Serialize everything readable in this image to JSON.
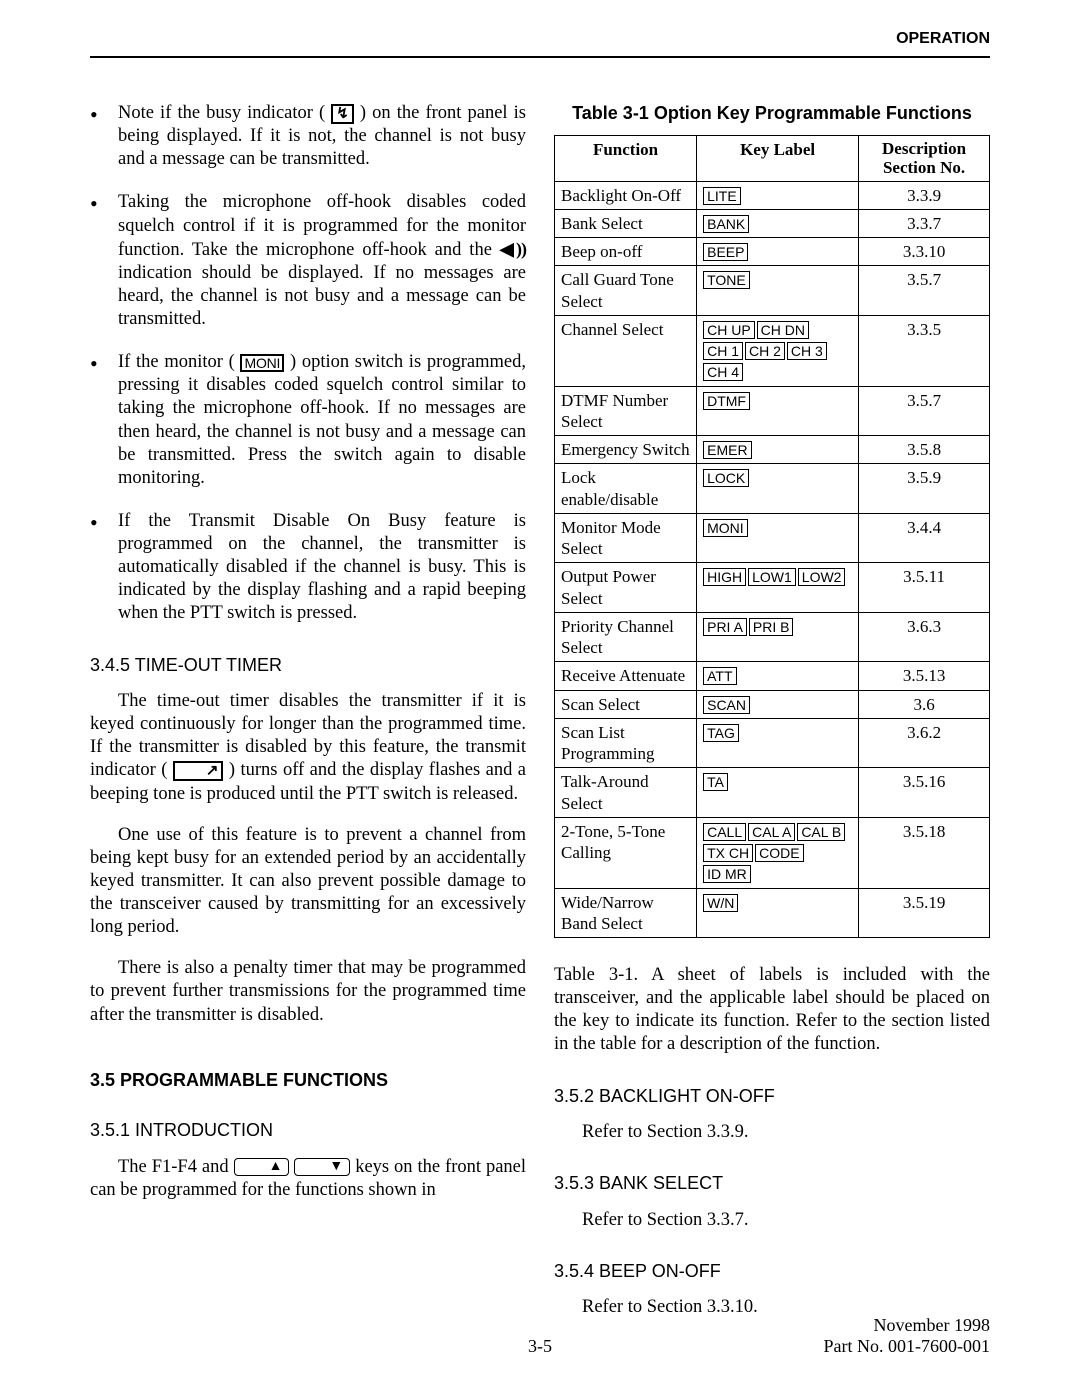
{
  "header": {
    "section_title": "OPERATION"
  },
  "bullets": [
    {
      "parts": [
        {
          "text": "Note if the busy indicator ( "
        },
        {
          "icon_square": "↯"
        },
        {
          "text": " ) on the front panel is being displayed. If it is not, the channel is not busy and a message can be transmitted."
        }
      ]
    },
    {
      "parts": [
        {
          "text": "Taking the microphone off-hook disables coded squelch control if it is programmed for the monitor function. Take the microphone off-hook and the "
        },
        {
          "sound_icon": "◀🔊"
        },
        {
          "text": " indication should be displayed. If no messages are heard, the channel is not busy and a message can be transmitted."
        }
      ]
    },
    {
      "parts": [
        {
          "text": "If the monitor ( "
        },
        {
          "icon_text": "MONI"
        },
        {
          "text": " ) option switch is programmed, pressing it disables coded squelch control similar to taking the microphone off-hook. If no messages are then heard, the channel is not busy and a message can be transmitted. Press the switch again to disable monitoring."
        }
      ]
    },
    {
      "parts": [
        {
          "text": "If the Transmit Disable On Busy feature is programmed on the channel, the transmitter is automatically disabled if the channel is busy. This is indicated by the display flashing and a rapid beeping when the PTT switch is pressed."
        }
      ]
    }
  ],
  "subsections_left": [
    {
      "heading": "3.4.5  TIME-OUT TIMER",
      "paras": [
        {
          "parts": [
            {
              "text": "The time-out timer disables the transmitter if it is keyed continuously for longer than the programmed time. If the transmitter is disabled by this feature, the transmit indicator ( "
            },
            {
              "icon_square": "↗"
            },
            {
              "text": " ) turns off and the display flashes and a beeping tone is produced until the PTT switch is released."
            }
          ]
        },
        {
          "parts": [
            {
              "text": "One use of this feature is to prevent a channel from being kept busy for an extended period by an accidentally keyed transmitter. It can also prevent possible damage to the transceiver caused by transmitting for an excessively long period."
            }
          ]
        },
        {
          "parts": [
            {
              "text": "There is also a penalty timer that may be programmed to prevent further transmissions for the programmed time after the transmitter is disabled."
            }
          ]
        }
      ]
    }
  ],
  "section_head": "3.5 PROGRAMMABLE FUNCTIONS",
  "intro": {
    "heading": "3.5.1  INTRODUCTION",
    "para_parts": [
      {
        "text": "The F1-F4 and "
      },
      {
        "key": "▲"
      },
      {
        "key": "▼"
      },
      {
        "text": " keys on the front panel can be programmed for the functions shown in "
      }
    ]
  },
  "table": {
    "caption": "Table 3-1  Option Key Programmable Functions",
    "columns": [
      "Function",
      "Key Label",
      "Description Section No."
    ],
    "rows": [
      {
        "func": "Backlight On-Off",
        "labels": [
          "LITE"
        ],
        "sect": "3.3.9"
      },
      {
        "func": "Bank Select",
        "labels": [
          "BANK"
        ],
        "sect": "3.3.7"
      },
      {
        "func": "Beep on-off",
        "labels": [
          "BEEP"
        ],
        "sect": "3.3.10"
      },
      {
        "func": "Call Guard Tone Select",
        "labels": [
          "TONE"
        ],
        "sect": "3.5.7"
      },
      {
        "func": "Channel Select",
        "labels": [
          "CH UP",
          "CH DN",
          "CH 1",
          "CH 2",
          "CH 3",
          "CH 4"
        ],
        "sect": "3.3.5"
      },
      {
        "func": "DTMF Number Select",
        "labels": [
          "DTMF"
        ],
        "sect": "3.5.7"
      },
      {
        "func": "Emergency Switch",
        "labels": [
          "EMER"
        ],
        "sect": "3.5.8"
      },
      {
        "func": "Lock enable/disable",
        "labels": [
          "LOCK"
        ],
        "sect": "3.5.9"
      },
      {
        "func": "Monitor Mode Select",
        "labels": [
          "MONI"
        ],
        "sect": "3.4.4"
      },
      {
        "func": "Output Power Select",
        "labels": [
          "HIGH",
          "LOW1",
          "LOW2"
        ],
        "sect": "3.5.11"
      },
      {
        "func": "Priority Channel Select",
        "labels": [
          "PRI A",
          "PRI B"
        ],
        "sect": "3.6.3"
      },
      {
        "func": "Receive Attenuate",
        "labels": [
          "ATT"
        ],
        "sect": "3.5.13"
      },
      {
        "func": "Scan Select",
        "labels": [
          "SCAN"
        ],
        "sect": "3.6"
      },
      {
        "func": "Scan List Programming",
        "labels": [
          "TAG"
        ],
        "sect": "3.6.2"
      },
      {
        "func": "Talk-Around Select",
        "labels": [
          "TA"
        ],
        "sect": "3.5.16"
      },
      {
        "func": "2-Tone, 5-Tone Calling",
        "labels": [
          "CALL",
          "CAL A",
          "CAL B",
          "TX CH",
          "CODE",
          "ID MR"
        ],
        "sect": "3.5.18"
      },
      {
        "func": "Wide/Narrow Band Select",
        "labels": [
          "W/N"
        ],
        "sect": "3.5.19"
      }
    ]
  },
  "right_para": "Table 3-1. A sheet of labels is included with the transceiver, and the applicable label should be placed on the key to indicate its function. Refer to the section listed in the table for a description of the function.",
  "right_subs": [
    {
      "heading": "3.5.2  BACKLIGHT ON-OFF",
      "text": "Refer to Section 3.3.9."
    },
    {
      "heading": "3.5.3  BANK SELECT",
      "text": "Refer to Section 3.3.7."
    },
    {
      "heading": "3.5.4  BEEP ON-OFF",
      "text": "Refer to Section 3.3.10."
    }
  ],
  "footer": {
    "page_num": "3-5",
    "date": "November 1998",
    "part": "Part No. 001-7600-001"
  }
}
